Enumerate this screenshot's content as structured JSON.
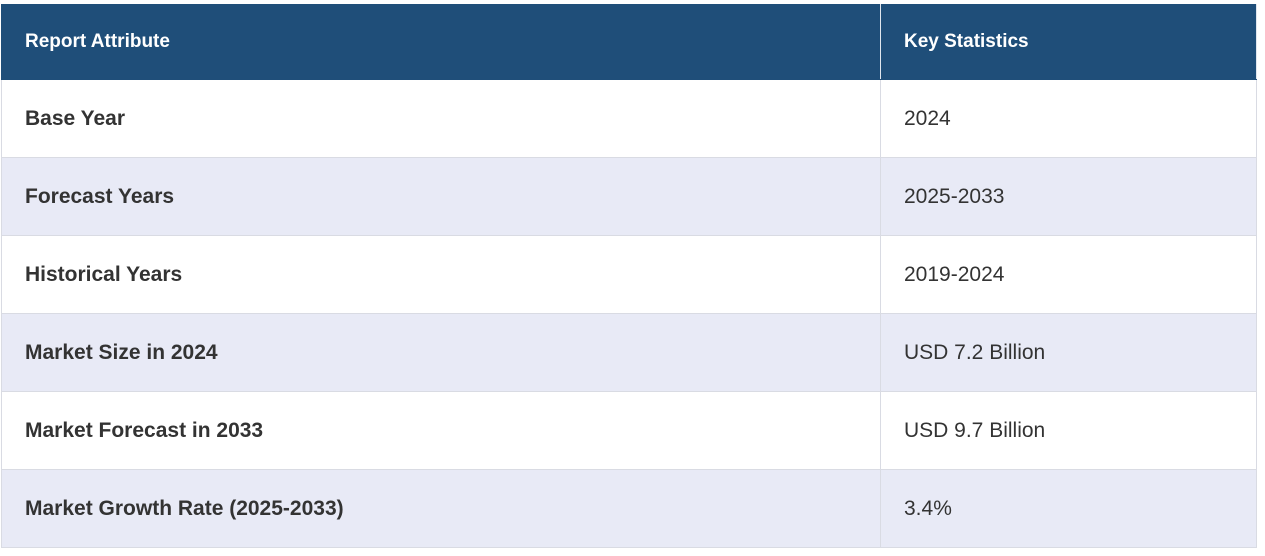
{
  "table": {
    "header": [
      "Report Attribute",
      "Key Statistics"
    ],
    "rows": [
      [
        "Base Year",
        "2024"
      ],
      [
        "Forecast Years",
        "2025-2033"
      ],
      [
        "Historical Years",
        "2019-2024"
      ],
      [
        "Market Size in 2024",
        "USD 7.2 Billion"
      ],
      [
        "Market Forecast in 2033",
        "USD 9.7 Billion"
      ],
      [
        "Market Growth Rate (2025-2033)",
        "3.4%"
      ]
    ]
  }
}
